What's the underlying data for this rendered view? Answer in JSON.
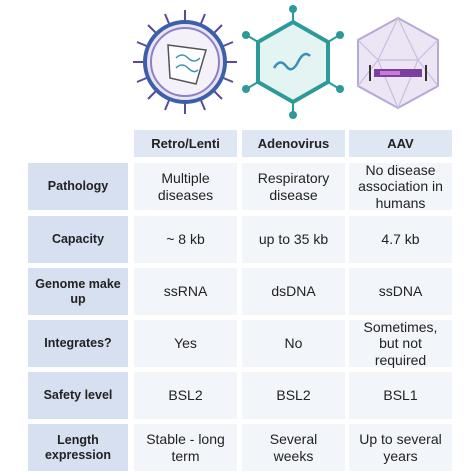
{
  "table": {
    "columns": [
      "Retro/Lenti",
      "Adenovirus",
      "AAV"
    ],
    "rows": [
      {
        "label": "Pathology",
        "cells": [
          "Multiple diseases",
          "Respiratory disease",
          "No disease association in humans"
        ]
      },
      {
        "label": "Capacity",
        "cells": [
          "~ 8 kb",
          "up to 35 kb",
          "4.7 kb"
        ]
      },
      {
        "label": "Genome make up",
        "cells": [
          "ssRNA",
          "dsDNA",
          "ssDNA"
        ]
      },
      {
        "label": "Integrates?",
        "cells": [
          "Yes",
          "No",
          "Sometimes, but not required"
        ]
      },
      {
        "label": "Safety level",
        "cells": [
          "BSL2",
          "BSL2",
          "BSL1"
        ]
      },
      {
        "label": "Length expression",
        "cells": [
          "Stable - long term",
          "Several weeks",
          "Up to several years"
        ]
      }
    ]
  }
}
